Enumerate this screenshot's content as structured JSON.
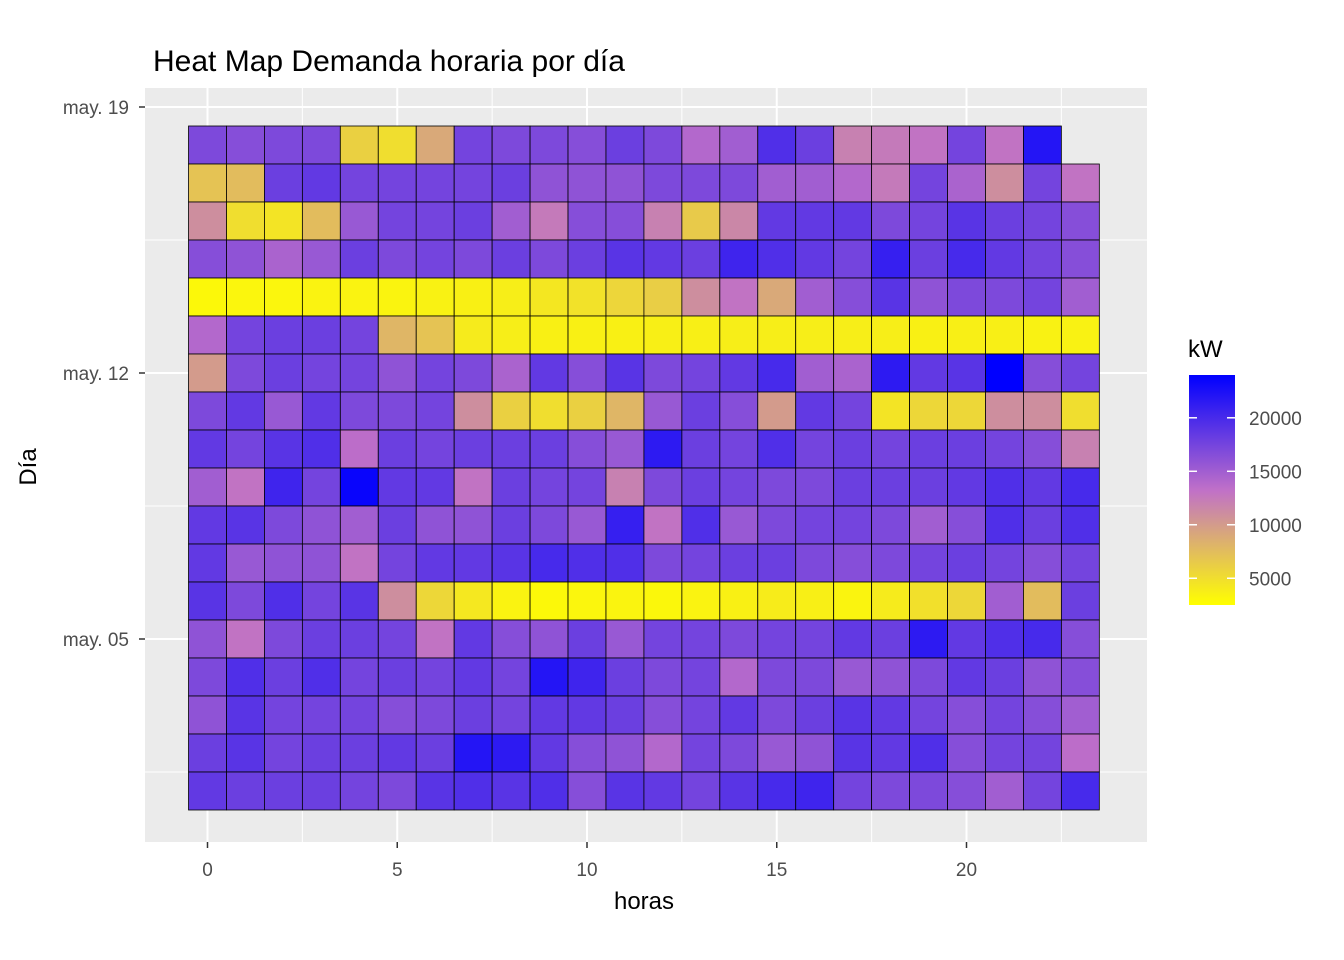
{
  "chart_data": {
    "type": "heatmap",
    "title": "Heat Map Demanda horaria por día",
    "xlabel": "horas",
    "ylabel": "Día",
    "x": [
      0,
      1,
      2,
      3,
      4,
      5,
      6,
      7,
      8,
      9,
      10,
      11,
      12,
      13,
      14,
      15,
      16,
      17,
      18,
      19,
      20,
      21,
      22,
      23
    ],
    "x_ticks": [
      0,
      5,
      10,
      15,
      20
    ],
    "xlim": [
      -1,
      25
    ],
    "days": [
      "may. 19",
      "may. 18",
      "may. 17",
      "may. 16",
      "may. 15",
      "may. 14",
      "may. 13",
      "may. 12",
      "may. 11",
      "may. 10",
      "may. 09",
      "may. 08",
      "may. 07",
      "may. 06",
      "may. 05",
      "may. 04",
      "may. 03",
      "may. 02",
      "may. 01"
    ],
    "y_ticks": [
      "may. 19",
      "may. 12",
      "may. 05"
    ],
    "grid": true,
    "legend": {
      "title": "kW",
      "position": "right",
      "breaks": [
        5000,
        10000,
        15000,
        20000
      ],
      "low_color": "#FFFF00",
      "high_color": "#0000FF",
      "min": 2500,
      "max": 24000
    },
    "values": [
      [
        null,
        null,
        null,
        null,
        null,
        null,
        null,
        null,
        null,
        null,
        null,
        null,
        null,
        null,
        null,
        null,
        null,
        null,
        null,
        null,
        null,
        null,
        null,
        null
      ],
      [
        17000,
        16500,
        17000,
        17000,
        6000,
        5000,
        9000,
        17500,
        17000,
        17000,
        16500,
        18000,
        17000,
        14000,
        15000,
        19500,
        18000,
        12000,
        12500,
        13000,
        17500,
        13000,
        22000,
        null
      ],
      [
        7000,
        7500,
        18000,
        18500,
        17500,
        17500,
        17500,
        17500,
        18000,
        16000,
        16000,
        16000,
        17000,
        17000,
        17000,
        15000,
        15000,
        14000,
        12500,
        17500,
        14500,
        11000,
        17500,
        13000
      ],
      [
        11000,
        5000,
        4500,
        7500,
        15500,
        17500,
        17500,
        18000,
        15000,
        12500,
        16500,
        16500,
        12000,
        6500,
        11500,
        18500,
        18500,
        18500,
        17000,
        17500,
        19000,
        18000,
        17500,
        16500
      ],
      [
        16500,
        16000,
        14500,
        15500,
        18000,
        17000,
        17500,
        17000,
        18000,
        17000,
        18000,
        19000,
        18500,
        18000,
        20500,
        19500,
        18500,
        17500,
        21000,
        18000,
        20000,
        18500,
        17500,
        16500
      ],
      [
        3000,
        3200,
        3200,
        3400,
        3400,
        3300,
        3500,
        3600,
        3800,
        4300,
        4700,
        5600,
        6200,
        11000,
        13000,
        9000,
        15000,
        16500,
        19000,
        16000,
        17000,
        17000,
        17500,
        15000
      ],
      [
        14000,
        17500,
        18000,
        18000,
        17500,
        8000,
        7000,
        4000,
        3800,
        3600,
        3600,
        3600,
        3700,
        3700,
        3800,
        3800,
        3800,
        3800,
        3800,
        3600,
        3700,
        3700,
        3500,
        3500
      ],
      [
        10000,
        17000,
        18000,
        17500,
        17500,
        16000,
        17500,
        17000,
        14500,
        18500,
        16500,
        19000,
        17000,
        17500,
        18500,
        20000,
        15000,
        14500,
        21500,
        18500,
        19000,
        24000,
        16500,
        17500
      ],
      [
        17000,
        18500,
        15500,
        18500,
        17000,
        17000,
        17500,
        11000,
        6000,
        5000,
        6000,
        8000,
        15500,
        18000,
        16500,
        10000,
        18500,
        17500,
        4500,
        5500,
        5500,
        11000,
        11000,
        5000
      ],
      [
        18500,
        17500,
        19000,
        19500,
        13500,
        18000,
        17500,
        18000,
        18000,
        18000,
        16500,
        15500,
        21500,
        18000,
        17500,
        19500,
        17500,
        18000,
        17500,
        18000,
        18000,
        17500,
        16500,
        12000
      ],
      [
        15000,
        13000,
        20500,
        17500,
        23500,
        18500,
        18500,
        13000,
        18000,
        17500,
        17500,
        12000,
        17000,
        18000,
        17500,
        17000,
        17000,
        18000,
        18000,
        18000,
        18500,
        19500,
        18500,
        20000
      ],
      [
        18500,
        19000,
        17000,
        16000,
        15000,
        18000,
        16000,
        16000,
        18000,
        17000,
        15500,
        21000,
        13000,
        19500,
        15500,
        17000,
        17500,
        17500,
        17000,
        15000,
        16500,
        19500,
        18000,
        19500
      ],
      [
        18500,
        15500,
        16000,
        16000,
        13000,
        17500,
        18500,
        18500,
        19000,
        20000,
        19500,
        19500,
        17000,
        17500,
        18000,
        18000,
        17000,
        16500,
        17000,
        17500,
        18000,
        17500,
        16500,
        17500
      ],
      [
        19000,
        17000,
        19500,
        17500,
        19000,
        11000,
        5500,
        4200,
        3400,
        3000,
        3200,
        3300,
        3100,
        3400,
        3600,
        3900,
        3700,
        3300,
        4000,
        4800,
        5500,
        15000,
        7500,
        18000
      ],
      [
        16000,
        13000,
        17000,
        18000,
        18000,
        17500,
        13000,
        18500,
        16500,
        16000,
        18000,
        15500,
        17500,
        17500,
        17000,
        17500,
        17500,
        18500,
        18000,
        21500,
        18500,
        19500,
        20000,
        16500
      ],
      [
        17000,
        19500,
        18000,
        19500,
        17500,
        18000,
        17500,
        18500,
        17500,
        22000,
        20500,
        18000,
        17000,
        17500,
        14000,
        17000,
        17000,
        15500,
        16000,
        17000,
        18500,
        18000,
        16000,
        16500
      ],
      [
        16000,
        19000,
        17500,
        17500,
        17500,
        16500,
        17000,
        18000,
        17500,
        18500,
        18500,
        18000,
        16500,
        17500,
        18500,
        17000,
        18000,
        19000,
        18500,
        17500,
        16500,
        17500,
        16500,
        15000
      ],
      [
        18000,
        19000,
        17500,
        18000,
        18000,
        18500,
        18000,
        22000,
        21500,
        18500,
        16500,
        16000,
        14000,
        17500,
        17000,
        15500,
        16000,
        19000,
        18500,
        19500,
        16500,
        17500,
        17500,
        13500
      ],
      [
        18500,
        18000,
        18000,
        18000,
        17500,
        17000,
        19000,
        19500,
        19000,
        19500,
        16500,
        19000,
        18500,
        17500,
        19000,
        20000,
        20500,
        17500,
        17000,
        17000,
        16500,
        15000,
        17500,
        20000
      ]
    ]
  }
}
